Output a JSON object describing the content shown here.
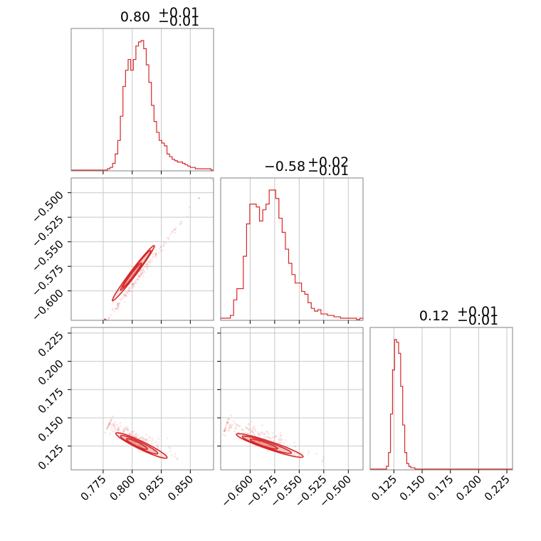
{
  "chart_data": {
    "type": "corner",
    "colors": {
      "series": "#d62728",
      "axes": "#808080",
      "grid": "#c8c8c8"
    },
    "grid": true,
    "parameters": [
      {
        "median": 0.8,
        "upper_err": 0.01,
        "lower_err": 0.01,
        "title": {
          "main": "0.80",
          "sup": "+0.01",
          "sub": "−0.01"
        },
        "range": [
          0.7475,
          0.87
        ],
        "ticks": [
          0.775,
          0.8,
          0.825,
          0.85
        ],
        "tick_labels": [
          "0.775",
          "0.800",
          "0.825",
          "0.850"
        ]
      },
      {
        "median": -0.58,
        "upper_err": 0.02,
        "lower_err": 0.01,
        "title": {
          "main": "−0.58",
          "sup": "+0.02",
          "sub": "−0.01"
        },
        "range": [
          -0.63,
          -0.485
        ],
        "ticks": [
          -0.6,
          -0.575,
          -0.55,
          -0.525,
          -0.5
        ],
        "tick_labels": [
          "−0.600",
          "−0.575",
          "−0.550",
          "−0.525",
          "−0.500"
        ]
      },
      {
        "median": 0.12,
        "upper_err": 0.01,
        "lower_err": 0.01,
        "title": {
          "main": "0.12",
          "sup": "+0.01",
          "sub": "−0.01"
        },
        "range": [
          0.104,
          0.23
        ],
        "ticks": [
          0.125,
          0.15,
          0.175,
          0.2,
          0.225
        ],
        "tick_labels": [
          "0.125",
          "0.150",
          "0.175",
          "0.200",
          "0.225"
        ]
      }
    ],
    "histograms": [
      {
        "param": 0,
        "bins": [
          0.7475,
          0.87
        ],
        "counts": [
          0,
          0,
          0,
          0,
          0,
          0,
          0,
          0,
          0,
          0,
          0,
          0,
          0,
          0,
          1,
          2,
          5,
          12,
          22,
          40,
          62,
          74,
          82,
          74,
          82,
          92,
          95,
          96,
          90,
          78,
          65,
          48,
          36,
          28,
          22,
          20,
          18,
          12,
          10,
          8,
          7,
          6,
          6,
          5,
          4,
          3,
          2,
          2,
          1,
          1,
          1,
          1,
          1,
          1,
          0
        ]
      },
      {
        "param": 1,
        "bins": [
          -0.63,
          -0.485
        ],
        "counts": [
          1,
          1,
          1,
          3,
          14,
          22,
          22,
          45,
          68,
          82,
          82,
          80,
          70,
          78,
          82,
          92,
          92,
          86,
          72,
          62,
          50,
          40,
          32,
          26,
          26,
          20,
          18,
          12,
          8,
          6,
          7,
          4,
          4,
          3,
          3,
          2,
          2,
          1,
          1,
          1,
          1,
          1,
          0,
          1
        ]
      },
      {
        "param": 2,
        "bins": [
          0.104,
          0.23
        ],
        "counts": [
          0,
          0,
          0,
          0,
          0,
          0,
          0,
          0,
          2,
          12,
          40,
          72,
          94,
          92,
          84,
          60,
          32,
          12,
          4,
          2,
          1,
          1,
          0,
          0,
          0,
          0,
          0,
          0,
          0,
          0,
          0,
          0,
          0,
          0,
          0,
          0,
          0,
          0,
          0,
          0,
          0,
          0,
          0,
          0,
          0,
          0,
          0,
          0,
          0,
          0,
          0,
          0,
          0,
          0,
          0,
          0,
          0,
          0,
          0,
          0,
          0,
          0,
          0,
          0,
          0,
          0,
          0,
          0,
          0,
          0
        ]
      }
    ],
    "panels_2d": [
      {
        "x_param": 0,
        "y_param": 1,
        "trend": {
          "x": [
            0.7775,
            0.869
          ],
          "y": [
            -0.63,
            -0.487
          ]
        },
        "contours": [
          {
            "center": [
              0.801,
              -0.582
            ],
            "half_length_x": 0.018,
            "half_width_y": 0.003
          },
          {
            "center": [
              0.803,
              -0.579
            ],
            "half_length_x": 0.013,
            "half_width_y": 0.0022
          },
          {
            "center": [
              0.8,
              -0.584
            ],
            "half_length_x": 0.008,
            "half_width_y": 0.0016
          }
        ]
      },
      {
        "x_param": 0,
        "y_param": 2,
        "trend": {
          "x": [
            0.78,
            0.845
          ],
          "y": [
            0.144,
            0.112
          ]
        },
        "contours": [
          {
            "center": [
              0.808,
              0.1255
            ],
            "half_length_x": 0.022,
            "half_width_y": 0.0035
          },
          {
            "center": [
              0.806,
              0.1262
            ],
            "half_length_x": 0.016,
            "half_width_y": 0.0026
          },
          {
            "center": [
              0.804,
              0.1268
            ],
            "half_length_x": 0.009,
            "half_width_y": 0.0018
          }
        ]
      },
      {
        "x_param": 1,
        "y_param": 2,
        "trend": {
          "x": [
            -0.624,
            -0.525
          ],
          "y": [
            0.144,
            0.115
          ]
        },
        "contours": [
          {
            "center": [
              -0.58,
              0.1255
            ],
            "half_length_x": 0.034,
            "half_width_y": 0.0035
          },
          {
            "center": [
              -0.583,
              0.1262
            ],
            "half_length_x": 0.025,
            "half_width_y": 0.0026
          },
          {
            "center": [
              -0.586,
              0.1268
            ],
            "half_length_x": 0.014,
            "half_width_y": 0.0018
          }
        ]
      }
    ]
  }
}
